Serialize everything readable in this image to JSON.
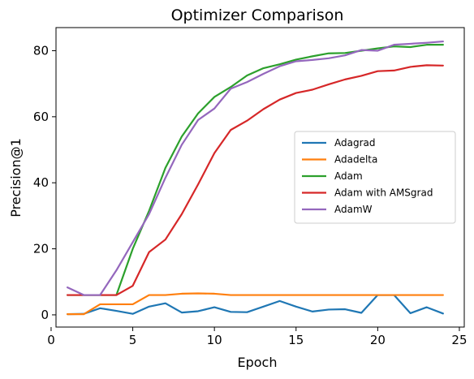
{
  "chart_data": {
    "type": "line",
    "title": "Optimizer Comparison",
    "xlabel": "Epoch",
    "ylabel": "Precision@1",
    "xlim": [
      0.3,
      25.3
    ],
    "ylim": [
      -3.7,
      87
    ],
    "xticks": [
      0,
      5,
      10,
      15,
      20,
      25
    ],
    "yticks": [
      0,
      20,
      40,
      60,
      80
    ],
    "grid": false,
    "legend_position": "center-right",
    "x": [
      1,
      2,
      3,
      4,
      5,
      6,
      7,
      8,
      9,
      10,
      11,
      12,
      13,
      14,
      15,
      16,
      17,
      18,
      19,
      20,
      21,
      22,
      23,
      24
    ],
    "series": [
      {
        "name": "Adagrad",
        "color": "#1f77b4",
        "values": [
          0.2,
          0.3,
          2.0,
          1.2,
          0.3,
          2.5,
          3.5,
          0.7,
          1.1,
          2.3,
          0.9,
          0.8,
          2.5,
          4.2,
          2.5,
          1.0,
          1.6,
          1.7,
          0.6,
          6.0,
          6.0,
          0.5,
          2.3,
          0.4
        ]
      },
      {
        "name": "Adadelta",
        "color": "#ff7f0e",
        "values": [
          0.2,
          0.2,
          3.2,
          3.2,
          3.2,
          6.0,
          6.0,
          6.4,
          6.5,
          6.4,
          6.0,
          6.0,
          6.0,
          6.0,
          6.0,
          6.0,
          6.0,
          6.0,
          6.0,
          6.0,
          6.0,
          6.0,
          6.0,
          6.0
        ]
      },
      {
        "name": "Adam",
        "color": "#2ca02c",
        "values": [
          6.0,
          6.0,
          6.0,
          6.0,
          20.0,
          31.5,
          44.5,
          54.0,
          61.0,
          66.0,
          69.0,
          72.5,
          74.7,
          75.9,
          77.3,
          78.3,
          79.2,
          79.3,
          80.0,
          80.7,
          81.3,
          81.1,
          81.8,
          81.8
        ]
      },
      {
        "name": "Adam with AMSgrad",
        "color": "#d62728",
        "values": [
          6.0,
          6.0,
          6.0,
          6.0,
          8.8,
          19.0,
          22.8,
          30.5,
          39.5,
          49.0,
          56.0,
          58.8,
          62.3,
          65.2,
          67.2,
          68.2,
          69.8,
          71.3,
          72.4,
          73.8,
          74.0,
          75.1,
          75.6,
          75.5
        ]
      },
      {
        "name": "AdamW",
        "color": "#9467bd",
        "values": [
          8.3,
          6.0,
          6.0,
          13.5,
          22.0,
          30.5,
          41.5,
          51.5,
          59.0,
          62.5,
          68.5,
          70.5,
          73.0,
          75.3,
          76.8,
          77.2,
          77.7,
          78.6,
          80.2,
          80.0,
          81.8,
          82.1,
          82.4,
          82.8
        ]
      }
    ]
  }
}
